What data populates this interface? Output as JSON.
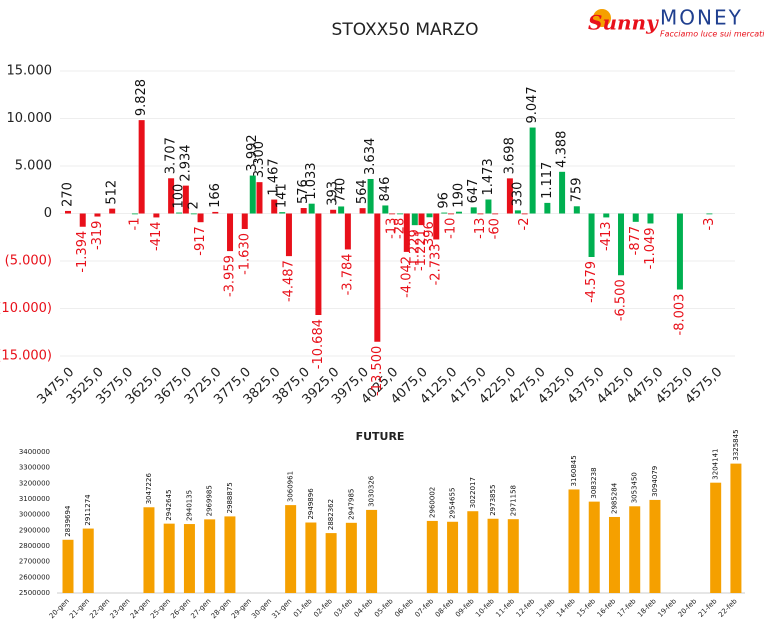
{
  "logo": {
    "name1": "Sunny",
    "name2": "MONEY",
    "tagline": "Facciamo luce sui mercati"
  },
  "chart_data": [
    {
      "type": "bar",
      "title": "STOXX50 MARZO",
      "categories": [
        "3475,0",
        null,
        "3525,0",
        null,
        "3575,0",
        null,
        "3625,0",
        null,
        "3675,0",
        null,
        "3725,0",
        null,
        "3775,0",
        null,
        "3825,0",
        null,
        "3875,0",
        null,
        "3925,0",
        null,
        "3975,0",
        null,
        "4025,0",
        null,
        "4075,0",
        null,
        "4125,0",
        null,
        "4175,0",
        null,
        "4225,0",
        null,
        "4275,0",
        null,
        "4325,0",
        null,
        "4375,0",
        null,
        "4425,0",
        null,
        "4475,0",
        null,
        "4525,0",
        null,
        "4575,0"
      ],
      "series": [
        {
          "color": "#e8101a",
          "values": [
            270,
            -1394,
            -319,
            512,
            null,
            9828,
            -414,
            3707,
            2934,
            -917,
            166,
            -3959,
            -1630,
            3300,
            1467,
            -4487,
            576,
            -10684,
            393,
            -3784,
            564,
            -13500,
            -13,
            -4042,
            -1221,
            -2733,
            -10,
            null,
            -13,
            -60,
            3698,
            -2,
            null,
            null,
            null,
            null,
            null,
            null,
            null,
            null,
            null,
            null,
            null,
            null,
            null
          ],
          "value_labels": [
            "270",
            "-1.394",
            "-319",
            "512",
            null,
            "9.828",
            "-414",
            "3.707",
            "2.934",
            "-917",
            "166",
            "-3.959",
            "-1.630",
            "3.300",
            "1.467",
            "-4.487",
            "576",
            "-10.684",
            "393",
            "-3.784",
            "564",
            "-13.500",
            "-13",
            "-4.042",
            "-1.221",
            "-2.733",
            "-10",
            null,
            "-13",
            "-60",
            "3.698",
            "-2",
            null,
            null,
            null,
            null,
            null,
            null,
            null,
            null,
            null,
            null,
            null,
            null,
            null
          ]
        },
        {
          "color": "#00b050",
          "values": [
            null,
            null,
            null,
            null,
            -1,
            null,
            null,
            100,
            2,
            null,
            null,
            null,
            3992,
            null,
            141,
            null,
            1033,
            null,
            740,
            null,
            3634,
            846,
            -28,
            -1229,
            -396,
            96,
            190,
            647,
            1473,
            null,
            330,
            9047,
            1117,
            4388,
            759,
            -4579,
            -413,
            -6500,
            -877,
            -1049,
            null,
            -8003,
            null,
            -3,
            null
          ],
          "value_labels": [
            null,
            null,
            null,
            null,
            "-1",
            null,
            null,
            "100",
            "2",
            null,
            null,
            null,
            "3.992",
            null,
            "141",
            null,
            "1.033",
            null,
            "740",
            null,
            "3.634",
            "846",
            "-28",
            "-1.229",
            "-396",
            "96",
            "190",
            "647",
            "1.473",
            null,
            "330",
            "9.047",
            "1.117",
            "4.388",
            "759",
            "-4.579",
            "-413",
            "-6.500",
            "-877",
            "-1.049",
            null,
            "-8.003",
            null,
            "-3",
            null
          ]
        }
      ],
      "ylim": [
        -15000,
        15000
      ],
      "yticks": [
        {
          "value": 15000,
          "label": "15.000"
        },
        {
          "value": 10000,
          "label": "10.000"
        },
        {
          "value": 5000,
          "label": "5.000"
        },
        0,
        {
          "value": -5000,
          "label": "(5.000)"
        },
        {
          "value": -10000,
          "label": "(10.000)"
        },
        {
          "value": -15000,
          "label": "(15.000)"
        }
      ],
      "grid": true
    },
    {
      "type": "bar",
      "title": "FUTURE",
      "color": "#f5a000",
      "categories": [
        "20-gen",
        "21-gen",
        "22-gen",
        "23-gen",
        "24-gen",
        "25-gen",
        "26-gen",
        "27-gen",
        "28-gen",
        "29-gen",
        "30-gen",
        "31-gen",
        "01-feb",
        "02-feb",
        "03-feb",
        "04-feb",
        "05-feb",
        "06-feb",
        "07-feb",
        "08-feb",
        "09-feb",
        "10-feb",
        "11-feb",
        "12-feb",
        "13-feb",
        "14-feb",
        "15-feb",
        "16-feb",
        "17-feb",
        "18-feb",
        "19-feb",
        "20-feb",
        "21-feb",
        "22-feb"
      ],
      "values": [
        2839694,
        2911274,
        null,
        null,
        3047226,
        2942645,
        2940135,
        2969985,
        2988875,
        null,
        null,
        3060961,
        2949896,
        2882362,
        2947985,
        3030326,
        null,
        null,
        2960002,
        2954655,
        3022017,
        2973855,
        2971158,
        null,
        null,
        3160845,
        3083238,
        2985284,
        3053450,
        3094079,
        null,
        null,
        3204141,
        3325845
      ],
      "ylim": [
        2500000,
        3400000
      ],
      "yticks": [
        2500000,
        2600000,
        2700000,
        2800000,
        2900000,
        3000000,
        3100000,
        3200000,
        3300000,
        3400000
      ],
      "grid": false
    }
  ]
}
